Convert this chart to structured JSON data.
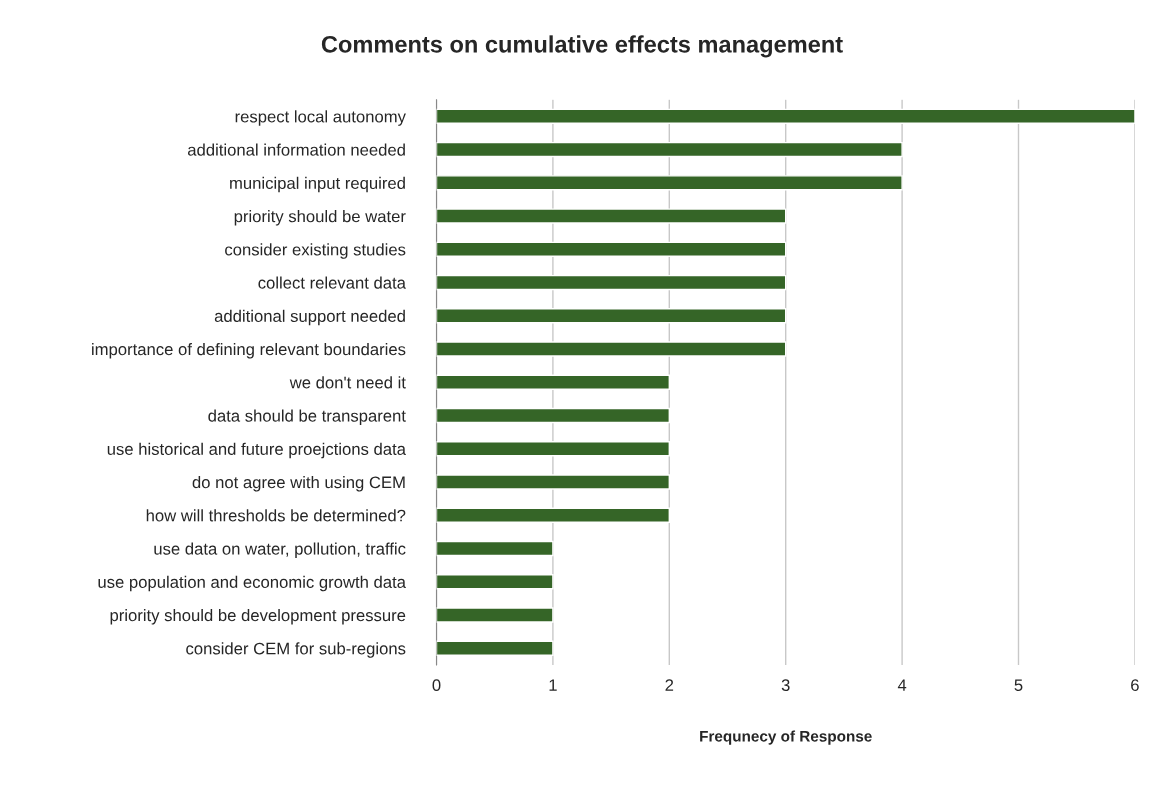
{
  "chart_data": {
    "type": "bar",
    "orientation": "horizontal",
    "title": "Comments on cumulative effects management",
    "xlabel": "Frequnecy of Response",
    "categories": [
      "respect local autonomy",
      "additional information needed",
      "municipal input required",
      "priority should be water",
      "consider existing studies",
      "collect relevant data",
      "additional support needed",
      "importance of defining relevant boundaries",
      "we don't need it",
      "data should be transparent",
      "use historical and future proejctions data",
      "do not agree with using CEM",
      "how will thresholds be determined?",
      "use data on water, pollution, traffic",
      "use population and economic growth data",
      "priority should be development pressure",
      "consider CEM for sub-regions"
    ],
    "values": [
      6,
      4,
      4,
      3,
      3,
      3,
      3,
      3,
      2,
      2,
      2,
      2,
      2,
      1,
      1,
      1,
      1
    ],
    "color": "#356527",
    "xlim": [
      0,
      6
    ],
    "xticks": [
      0,
      1,
      2,
      3,
      4,
      5,
      6
    ],
    "grid": "x",
    "legend": false
  }
}
